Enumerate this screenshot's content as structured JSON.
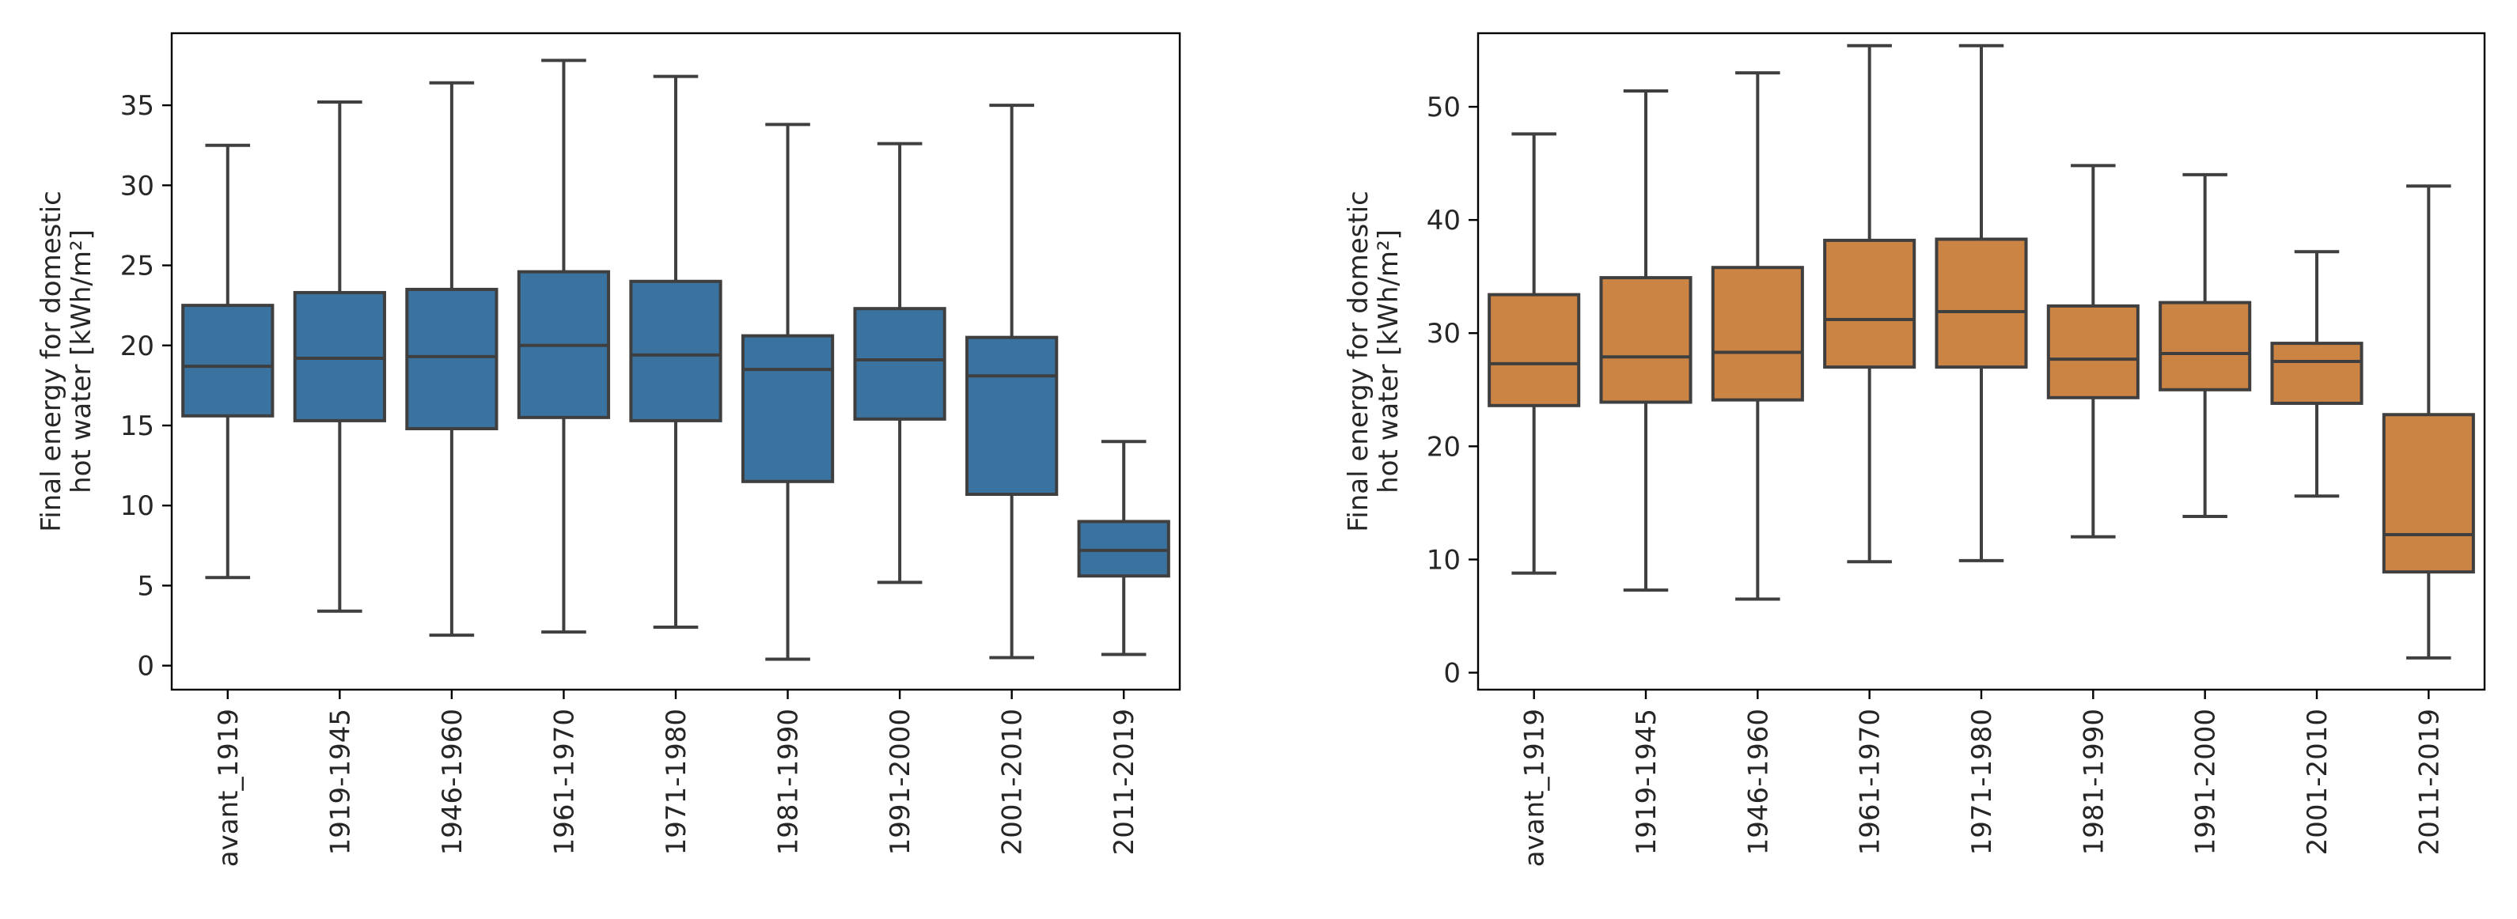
{
  "chart_data": [
    {
      "type": "boxplot",
      "color": "#3a73a0",
      "ylabel": [
        "Final energy for domestic",
        "hot water [kWh/m²]"
      ],
      "ylim": [
        -1.5,
        39.5
      ],
      "yticks": [
        0,
        5,
        10,
        15,
        20,
        25,
        30,
        35
      ],
      "ytick_labels": [
        "0",
        "5",
        "10",
        "15",
        "20",
        "25",
        "30",
        "35"
      ],
      "categories": [
        "avant_1919",
        "1919-1945",
        "1946-1960",
        "1961-1970",
        "1971-1980",
        "1981-1990",
        "1991-2000",
        "2001-2010",
        "2011-2019"
      ],
      "boxes": [
        {
          "whislo": 5.5,
          "q1": 15.6,
          "med": 18.7,
          "q3": 22.5,
          "whishi": 32.5
        },
        {
          "whislo": 3.4,
          "q1": 15.3,
          "med": 19.2,
          "q3": 23.3,
          "whishi": 35.2
        },
        {
          "whislo": 1.9,
          "q1": 14.8,
          "med": 19.3,
          "q3": 23.5,
          "whishi": 36.4
        },
        {
          "whislo": 2.1,
          "q1": 15.5,
          "med": 20.0,
          "q3": 24.6,
          "whishi": 37.8
        },
        {
          "whislo": 2.4,
          "q1": 15.3,
          "med": 19.4,
          "q3": 24.0,
          "whishi": 36.8
        },
        {
          "whislo": 0.4,
          "q1": 11.5,
          "med": 18.5,
          "q3": 20.6,
          "whishi": 33.8
        },
        {
          "whislo": 5.2,
          "q1": 15.4,
          "med": 19.1,
          "q3": 22.3,
          "whishi": 32.6
        },
        {
          "whislo": 0.5,
          "q1": 10.7,
          "med": 18.1,
          "q3": 20.5,
          "whishi": 35.0
        },
        {
          "whislo": 0.7,
          "q1": 5.6,
          "med": 7.2,
          "q3": 9.0,
          "whishi": 14.0
        }
      ]
    },
    {
      "type": "boxplot",
      "color": "#cc8444",
      "ylabel": [
        "Final energy for domestic",
        "hot water [kWh/m²]"
      ],
      "ylim": [
        -1.5,
        56.5
      ],
      "yticks": [
        0,
        10,
        20,
        30,
        40,
        50
      ],
      "ytick_labels": [
        "0",
        "10",
        "20",
        "30",
        "40",
        "50"
      ],
      "categories": [
        "avant_1919",
        "1919-1945",
        "1946-1960",
        "1961-1970",
        "1971-1980",
        "1981-1990",
        "1991-2000",
        "2001-2010",
        "2011-2019"
      ],
      "boxes": [
        {
          "whislo": 8.8,
          "q1": 23.6,
          "med": 27.3,
          "q3": 33.4,
          "whishi": 47.6
        },
        {
          "whislo": 7.3,
          "q1": 23.9,
          "med": 27.9,
          "q3": 34.9,
          "whishi": 51.4
        },
        {
          "whislo": 6.5,
          "q1": 24.1,
          "med": 28.3,
          "q3": 35.8,
          "whishi": 53.0
        },
        {
          "whislo": 9.8,
          "q1": 27.0,
          "med": 31.2,
          "q3": 38.2,
          "whishi": 55.4
        },
        {
          "whislo": 9.9,
          "q1": 27.0,
          "med": 31.9,
          "q3": 38.3,
          "whishi": 55.4
        },
        {
          "whislo": 12.0,
          "q1": 24.3,
          "med": 27.7,
          "q3": 32.4,
          "whishi": 44.8
        },
        {
          "whislo": 13.8,
          "q1": 25.0,
          "med": 28.2,
          "q3": 32.7,
          "whishi": 44.0
        },
        {
          "whislo": 15.6,
          "q1": 23.8,
          "med": 27.5,
          "q3": 29.1,
          "whishi": 37.2
        },
        {
          "whislo": 1.3,
          "q1": 8.9,
          "med": 12.2,
          "q3": 22.8,
          "whishi": 43.0
        }
      ]
    }
  ]
}
